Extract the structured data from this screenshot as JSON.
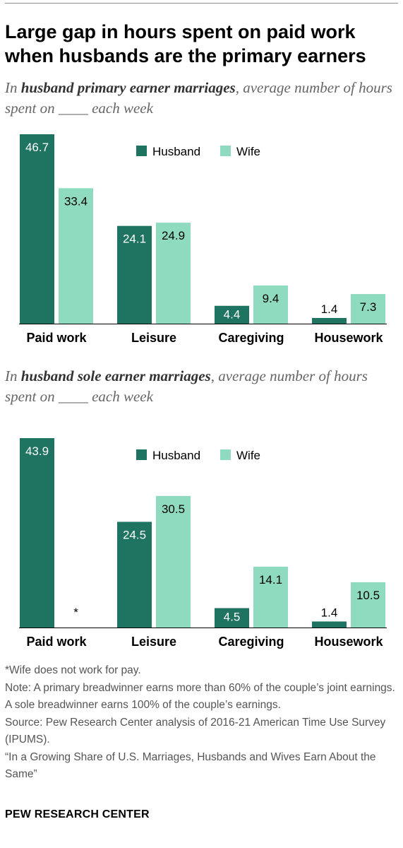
{
  "title": "Large gap in hours spent on paid work when husbands are the primary earners",
  "colors": {
    "husband": "#1f7461",
    "wife": "#8fdbc0",
    "axis": "#000000"
  },
  "chart_data": [
    {
      "type": "bar",
      "subtitle_lead": "In ",
      "subtitle_bold": "husband primary earner marriages",
      "subtitle_tail": ", average number of hours spent on ____ each week",
      "categories": [
        "Paid work",
        "Leisure",
        "Caregiving",
        "Housework"
      ],
      "series": [
        {
          "name": "Husband",
          "values": [
            46.7,
            24.1,
            4.4,
            1.4
          ],
          "labels": [
            "46.7",
            "24.1",
            "4.4",
            "1.4"
          ]
        },
        {
          "name": "Wife",
          "values": [
            33.4,
            24.9,
            9.4,
            7.3
          ],
          "labels": [
            "33.4",
            "24.9",
            "9.4",
            "7.3"
          ]
        }
      ],
      "ylim": [
        0,
        46.7
      ],
      "legend": "top-center",
      "grid": false
    },
    {
      "type": "bar",
      "subtitle_lead": "In ",
      "subtitle_bold": "husband sole earner marriages",
      "subtitle_tail": ", average number of hours spent on ____ each week",
      "categories": [
        "Paid work",
        "Leisure",
        "Caregiving",
        "Housework"
      ],
      "series": [
        {
          "name": "Husband",
          "values": [
            43.9,
            24.5,
            4.5,
            1.4
          ],
          "labels": [
            "43.9",
            "24.5",
            "4.5",
            "1.4"
          ]
        },
        {
          "name": "Wife",
          "values": [
            null,
            30.5,
            14.1,
            10.5
          ],
          "labels": [
            "*",
            "30.5",
            "14.1",
            "10.5"
          ]
        }
      ],
      "ylim": [
        0,
        43.9
      ],
      "legend": "top-center",
      "grid": false
    }
  ],
  "notes": [
    "*Wife does not work for pay.",
    "Note: A primary breadwinner earns more than 60% of the couple’s joint earnings. A sole breadwinner earns 100% of the couple’s earnings.",
    "Source: Pew Research Center analysis of 2016-21 American Time Use Survey (IPUMS).",
    "“In a Growing Share of U.S. Marriages, Husbands and Wives Earn About the Same”"
  ],
  "footer": "PEW RESEARCH CENTER"
}
